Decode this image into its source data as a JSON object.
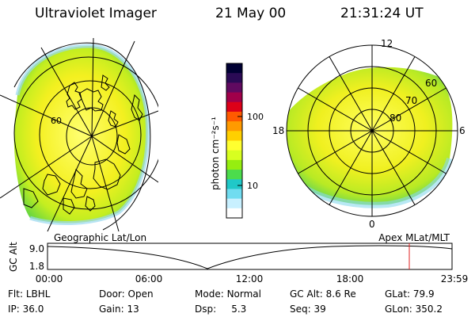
{
  "header": {
    "title": "Ultraviolet Imager",
    "date": "21 May 00",
    "time": "21:31:24 UT"
  },
  "left_map": {
    "latitude_label": "60",
    "projection_label": "Geographic Lat/Lon"
  },
  "right_map": {
    "mlt_labels": {
      "top": "12",
      "left": "18",
      "right": "6",
      "bottom": "0"
    },
    "mlat_labels": [
      "60",
      "70",
      "80"
    ],
    "projection_label": "Apex MLat/MLT"
  },
  "colorbar": {
    "unit_label": "photon cm⁻²s⁻¹",
    "ticks": [
      "100",
      "10"
    ],
    "colors": [
      "#000033",
      "#2a0a55",
      "#600a60",
      "#a0004a",
      "#dc0018",
      "#ff5a00",
      "#ff9a00",
      "#ffd000",
      "#ffff30",
      "#d8ff20",
      "#96ee10",
      "#4cdc4c",
      "#20c8c8",
      "#70dcf0",
      "#c8f0ff",
      "#ffffff"
    ]
  },
  "timeline": {
    "axis_label": "GC Alt",
    "y_ticks": [
      "9.0",
      "1.8"
    ],
    "x_ticks": [
      "00:00",
      "06:00",
      "12:00",
      "18:00",
      "23:59"
    ],
    "marker_color": "#e02020"
  },
  "info": {
    "row1": [
      {
        "label": "Flt:",
        "value": "LBHL"
      },
      {
        "label": "Door:",
        "value": "Open"
      },
      {
        "label": "Mode:",
        "value": "Normal"
      },
      {
        "label": "GC Alt:",
        "value": "8.6 Re"
      },
      {
        "label": "GLat:",
        "value": "79.9"
      }
    ],
    "row2": [
      {
        "label": "IP:",
        "value": "36.0"
      },
      {
        "label": "Gain:",
        "value": "13"
      },
      {
        "label": "Dsp:",
        "value": "5.3"
      },
      {
        "label": "Seq:",
        "value": "39"
      },
      {
        "label": "GLon:",
        "value": "350.2"
      }
    ]
  }
}
